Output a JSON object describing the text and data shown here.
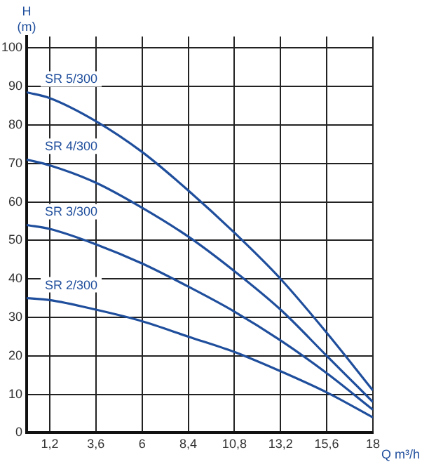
{
  "chart_data": {
    "type": "line",
    "xlabel": "Q m³/h",
    "ylabel": "H (m)",
    "x": [
      0,
      1.2,
      3.6,
      6,
      8.4,
      10.8,
      13.2,
      15.6,
      18
    ],
    "series": [
      {
        "name": "SR 5/300",
        "color": "#1f4e9c",
        "values": [
          88.5,
          87,
          81,
          73,
          63,
          52,
          40,
          26,
          11
        ]
      },
      {
        "name": "SR 4/300",
        "color": "#1f4e9c",
        "values": [
          71,
          69.5,
          65,
          58.5,
          51,
          42,
          32,
          20,
          8
        ]
      },
      {
        "name": "SR 3/300",
        "color": "#1f4e9c",
        "values": [
          54,
          53,
          49,
          44,
          38,
          31.5,
          24,
          15.5,
          6
        ]
      },
      {
        "name": "SR 2/300",
        "color": "#1f4e9c",
        "values": [
          35,
          34.5,
          32,
          29,
          25,
          21,
          16,
          10.5,
          4
        ]
      }
    ],
    "xlim": [
      0,
      18
    ],
    "xticks": [
      {
        "value": 1.2,
        "label": "1,2"
      },
      {
        "value": 3.6,
        "label": "3,6"
      },
      6,
      {
        "value": 8.4,
        "label": "8,4"
      },
      {
        "value": 10.8,
        "label": "10,8"
      },
      {
        "value": 13.2,
        "label": "13,2"
      },
      {
        "value": 15.6,
        "label": "15,6"
      },
      18
    ],
    "ylim": [
      0,
      103
    ],
    "yticks": [
      0,
      10,
      20,
      30,
      40,
      50,
      60,
      70,
      80,
      90,
      100
    ],
    "grid": true,
    "legend": false,
    "marker": "none",
    "line_style": "solid"
  }
}
